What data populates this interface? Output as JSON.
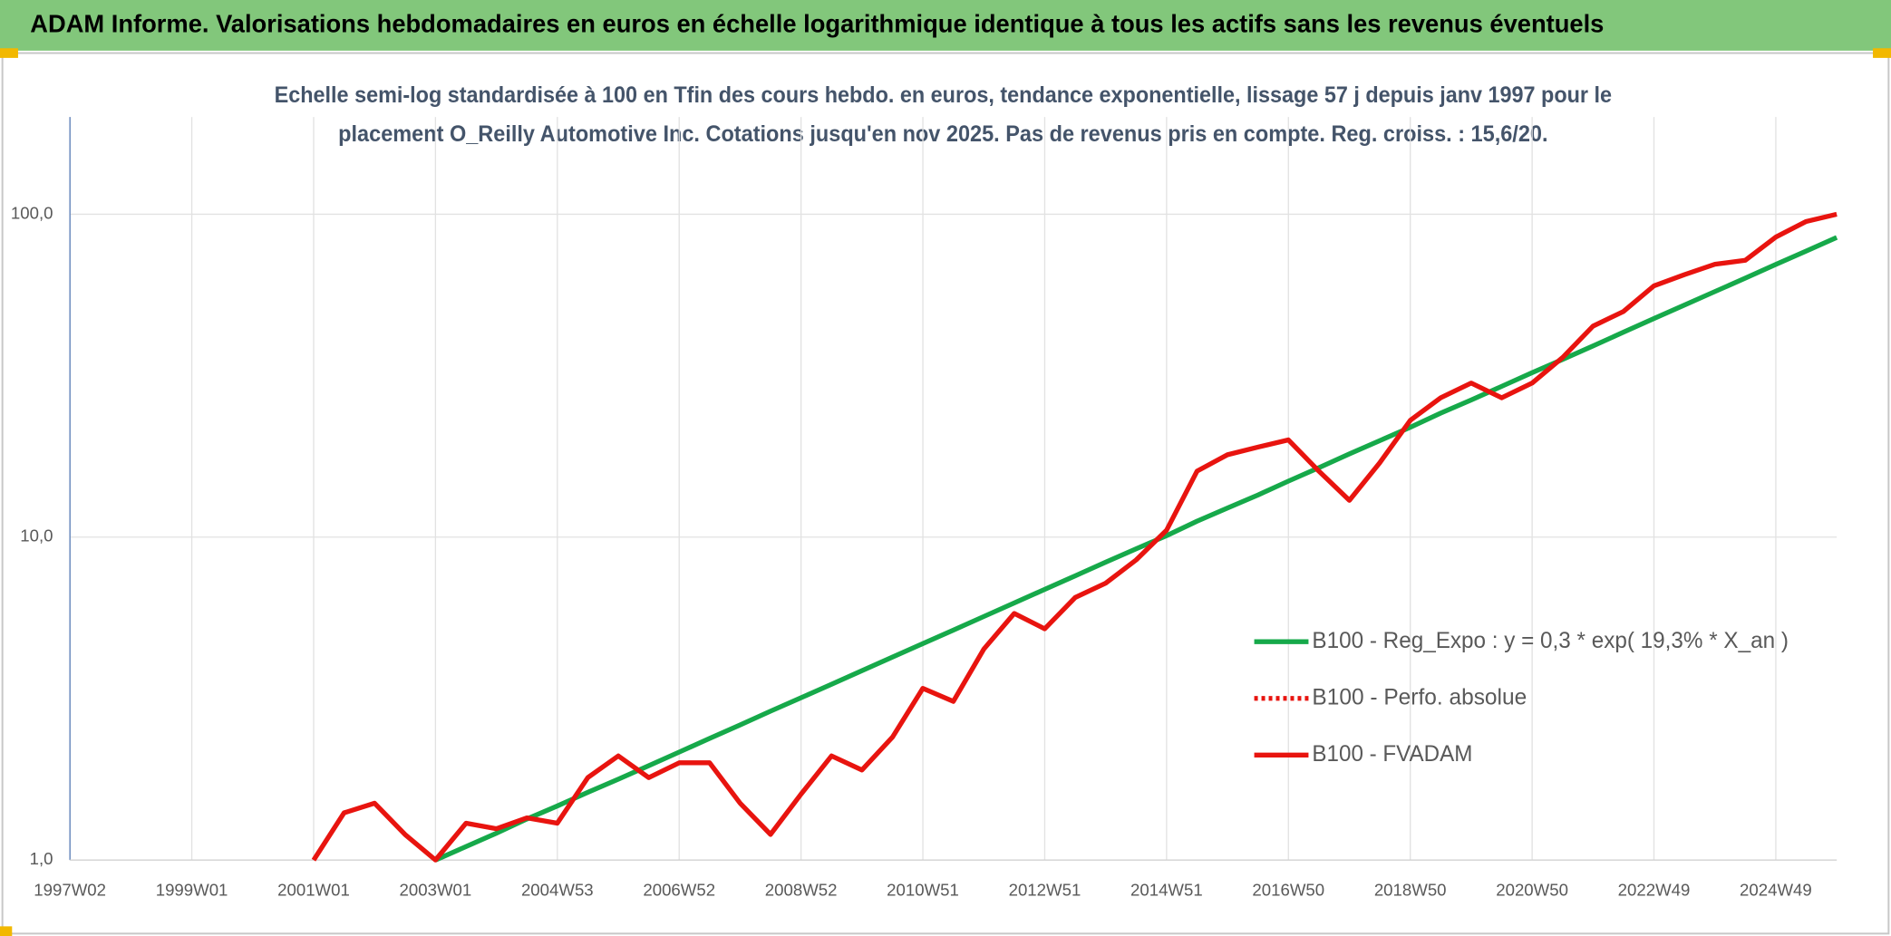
{
  "chart_data": {
    "type": "line",
    "title": "ADAM Informe. Valorisations hebdomadaires en euros en échelle logarithmique identique à tous les actifs sans les revenus éventuels",
    "subtitle": [
      "Echelle semi-log standardisée à 100 en Tfin des cours hebdo. en euros, tendance exponentielle, lissage 57 j depuis janv 1997 pour le",
      "placement O_Reilly Automotive Inc. Cotations jusqu'en nov 2025. Pas de revenus pris en compte. Reg. croiss. : 15,6/20."
    ],
    "categories": [
      "1997W02",
      null,
      null,
      null,
      "1999W01",
      null,
      null,
      null,
      "2001W01",
      null,
      null,
      null,
      "2003W01",
      null,
      null,
      null,
      "2004W53",
      null,
      null,
      null,
      "2006W52",
      null,
      null,
      null,
      "2008W52",
      null,
      null,
      null,
      "2010W51",
      null,
      null,
      null,
      "2012W51",
      null,
      null,
      null,
      "2014W51",
      null,
      null,
      null,
      "2016W50",
      null,
      null,
      null,
      "2018W50",
      null,
      null,
      null,
      "2020W50",
      null,
      null,
      null,
      "2022W49",
      null,
      null,
      null,
      "2024W49",
      null,
      null
    ],
    "series": [
      {
        "name": "B100 - Reg_Expo : y = 0,3 * exp( 19,3% *  X_an )",
        "color": "#16a94a",
        "style": "solid",
        "values": [
          null,
          null,
          null,
          null,
          null,
          null,
          null,
          null,
          null,
          null,
          null,
          null,
          1.0,
          1.1,
          1.21,
          1.34,
          1.47,
          1.62,
          1.78,
          1.96,
          2.16,
          2.38,
          2.62,
          2.89,
          3.18,
          3.5,
          3.86,
          4.25,
          4.68,
          5.15,
          5.68,
          6.25,
          6.89,
          7.59,
          8.36,
          9.2,
          10.1,
          11.2,
          12.3,
          13.5,
          14.9,
          16.4,
          18.1,
          19.9,
          21.9,
          24.2,
          26.6,
          29.3,
          32.3,
          35.5,
          39.1,
          43.1,
          47.5,
          52.3,
          57.6,
          63.4,
          69.9,
          76.9,
          84.7
        ]
      },
      {
        "name": "B100 - Perfo. absolue",
        "color": "#e8140f",
        "style": "dotted",
        "values": [
          null,
          null,
          null,
          null,
          null,
          null,
          null,
          null,
          1.0,
          1.4,
          1.5,
          1.2,
          1.0,
          1.3,
          1.25,
          1.35,
          1.3,
          1.8,
          2.1,
          1.8,
          2.0,
          2.0,
          1.5,
          1.2,
          1.6,
          2.1,
          1.9,
          2.4,
          3.4,
          3.1,
          4.5,
          5.8,
          5.2,
          6.5,
          7.2,
          8.5,
          10.5,
          16,
          18,
          19,
          20,
          16,
          13,
          17,
          23,
          27,
          30,
          27,
          30,
          36,
          45,
          50,
          60,
          65,
          70,
          72,
          85,
          95,
          100
        ]
      },
      {
        "name": "B100 - FVADAM",
        "color": "#e8140f",
        "style": "solid",
        "values": [
          null,
          null,
          null,
          null,
          null,
          null,
          null,
          null,
          1.0,
          1.4,
          1.5,
          1.2,
          1.0,
          1.3,
          1.25,
          1.35,
          1.3,
          1.8,
          2.1,
          1.8,
          2.0,
          2.0,
          1.5,
          1.2,
          1.6,
          2.1,
          1.9,
          2.4,
          3.4,
          3.1,
          4.5,
          5.8,
          5.2,
          6.5,
          7.2,
          8.5,
          10.5,
          16,
          18,
          19,
          20,
          16,
          13,
          17,
          23,
          27,
          30,
          27,
          30,
          36,
          45,
          50,
          60,
          65,
          70,
          72,
          85,
          95,
          100
        ]
      }
    ],
    "log_scale": true,
    "ylim": [
      1,
      200
    ],
    "yticks": [
      {
        "value": 1,
        "label": "1,0"
      },
      {
        "value": 10,
        "label": "10,0"
      },
      {
        "value": 100,
        "label": "100,0"
      }
    ],
    "grid": true
  }
}
